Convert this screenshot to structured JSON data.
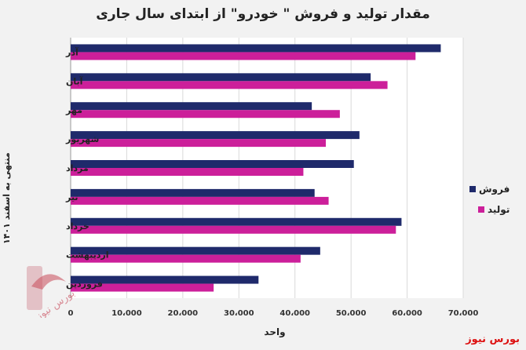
{
  "chart_data": {
    "type": "bar",
    "orientation": "horizontal",
    "title": "مقدار تولید و فروش \" خودرو\" از ابتدای سال جاری",
    "xlabel": "واحد",
    "ylabel": "منتهی به اسفند ۱۴۰۱",
    "categories": [
      "آذر",
      "آبان",
      "مهر",
      "شهریور",
      "مرداد",
      "تیر",
      "خرداد",
      "اردیبهشت",
      "فروردین"
    ],
    "xlim": [
      0,
      70000
    ],
    "x_ticks": [
      0,
      10000,
      20000,
      30000,
      40000,
      50000,
      60000,
      70000
    ],
    "x_tick_labels": [
      "0",
      "10،000",
      "20،000",
      "30،000",
      "40،000",
      "50،000",
      "60،000",
      "70،000"
    ],
    "series": [
      {
        "name": "فروش",
        "color": "#1f2a6b",
        "values": [
          66000,
          53500,
          43000,
          51500,
          50500,
          43500,
          59000,
          44500,
          33500
        ]
      },
      {
        "name": "تولید",
        "color": "#cc1f9a",
        "values": [
          61500,
          56500,
          48000,
          45500,
          41500,
          46000,
          58000,
          41000,
          25500
        ]
      }
    ],
    "grid": true,
    "legend_position": "right"
  },
  "brand": {
    "name": "بورس نیوز",
    "watermark_text": "بورس نیوز"
  }
}
